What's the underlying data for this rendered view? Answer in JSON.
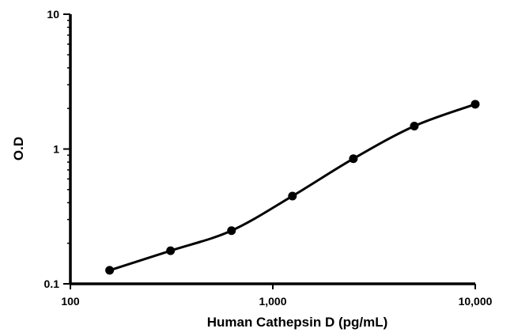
{
  "chart_data": {
    "type": "line",
    "xlabel": "Human Cathepsin D (pg/mL)",
    "ylabel": "O.D",
    "xscale": "log",
    "yscale": "log",
    "xlim": [
      100,
      10000
    ],
    "ylim": [
      0.1,
      10
    ],
    "x_ticks": [
      100,
      1000,
      10000
    ],
    "x_tick_labels": [
      "100",
      "1,000",
      "10,000"
    ],
    "y_ticks": [
      0.1,
      1,
      10
    ],
    "y_tick_labels": [
      "0.1",
      "1",
      "10"
    ],
    "grid": false,
    "series": [
      {
        "color": "#000000",
        "marker": "circle",
        "smooth": true,
        "x": [
          156.25,
          312.5,
          625,
          1250,
          2500,
          5000,
          10000
        ],
        "y": [
          0.126,
          0.176,
          0.248,
          0.448,
          0.848,
          1.48,
          2.15
        ]
      }
    ]
  }
}
